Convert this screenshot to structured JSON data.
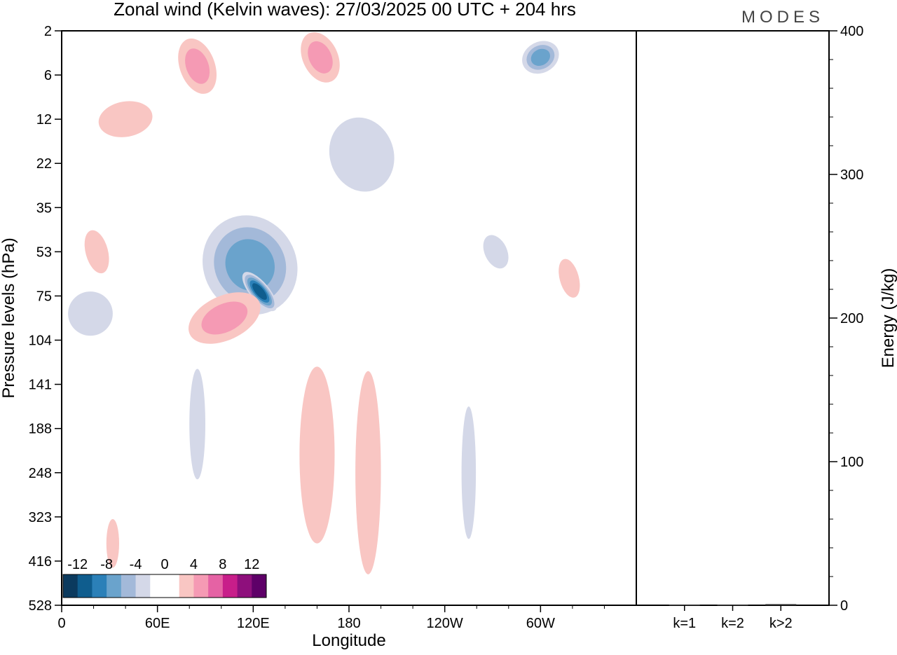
{
  "chart_data": {
    "type": "heatmap",
    "title": "Zonal wind (Kelvin waves):  27/03/2025  00 UTC  + 204 hrs",
    "logo": "MODES",
    "xlabel": "Longitude",
    "ylabel": "Pressure levels (hPa)",
    "ylabel_right": "Energy (J/kg)",
    "x_ticks": [
      "0",
      "60E",
      "120E",
      "180",
      "120W",
      "60W"
    ],
    "y_ticks": [
      "2",
      "6",
      "12",
      "22",
      "35",
      "53",
      "75",
      "104",
      "141",
      "188",
      "248",
      "323",
      "416",
      "528"
    ],
    "energy_axis": {
      "ticks": [
        "0",
        "100",
        "200",
        "300",
        "400"
      ],
      "range": [
        0,
        400
      ]
    },
    "energy_categories": [
      "k=1",
      "k=2",
      "k>2"
    ],
    "energy_values": [
      0.5,
      0.5,
      0.8
    ],
    "colorbar": {
      "labels": [
        "-12",
        "-8",
        "-4",
        "0",
        "4",
        "8",
        "12"
      ],
      "colors": [
        "#0b3a5e",
        "#0f5d8e",
        "#2b80b8",
        "#6aa3cc",
        "#a3b9d9",
        "#d4d8e8",
        "#ffffff",
        "#ffffff",
        "#f9c6c3",
        "#f59ab4",
        "#e562a4",
        "#c81e8a",
        "#8e0f7c",
        "#5e0068"
      ]
    },
    "features": [
      {
        "sign": "negative",
        "level": 3,
        "lon": 118,
        "lev": 5.3,
        "w": 58,
        "h": 2.3,
        "rot": -30
      },
      {
        "sign": "negative",
        "level": 5,
        "lon": 124,
        "lev": 5.9,
        "w": 12,
        "h": 1.1,
        "rot": -40
      },
      {
        "sign": "positive",
        "level": 2,
        "lon": 102,
        "lev": 6.5,
        "w": 48,
        "h": 1.0,
        "rot": -25
      },
      {
        "sign": "negative",
        "level": 1,
        "lon": 188,
        "lev": 2.8,
        "w": 40,
        "h": 1.7,
        "rot": -18
      },
      {
        "sign": "negative",
        "level": 3,
        "lon": 300,
        "lev": 0.6,
        "w": 24,
        "h": 0.7,
        "rot": -28
      },
      {
        "sign": "positive",
        "level": 1,
        "lon": 160,
        "lev": 9.6,
        "w": 22,
        "h": 4.0,
        "rot": 0
      },
      {
        "sign": "positive",
        "level": 1,
        "lon": 192,
        "lev": 10.0,
        "w": 16,
        "h": 4.6,
        "rot": 0
      },
      {
        "sign": "negative",
        "level": 1,
        "lon": 255,
        "lev": 10.0,
        "w": 9,
        "h": 3.0,
        "rot": 0
      },
      {
        "sign": "positive",
        "level": 2,
        "lon": 162,
        "lev": 0.6,
        "w": 22,
        "h": 1.2,
        "rot": -25
      },
      {
        "sign": "positive",
        "level": 2,
        "lon": 85,
        "lev": 0.8,
        "w": 22,
        "h": 1.3,
        "rot": -20
      },
      {
        "sign": "positive",
        "level": 1,
        "lon": 40,
        "lev": 2.0,
        "w": 34,
        "h": 0.8,
        "rot": -10
      },
      {
        "sign": "negative",
        "level": 1,
        "lon": 85,
        "lev": 8.9,
        "w": 10,
        "h": 2.5,
        "rot": 0
      },
      {
        "sign": "negative",
        "level": 1,
        "lon": 18,
        "lev": 6.4,
        "w": 28,
        "h": 1.0,
        "rot": 0
      },
      {
        "sign": "positive",
        "level": 1,
        "lon": 318,
        "lev": 5.6,
        "w": 12,
        "h": 0.9,
        "rot": -15
      },
      {
        "sign": "negative",
        "level": 1,
        "lon": 272,
        "lev": 5.0,
        "w": 14,
        "h": 0.8,
        "rot": -25
      },
      {
        "sign": "positive",
        "level": 1,
        "lon": 22,
        "lev": 5.0,
        "w": 14,
        "h": 1.0,
        "rot": -15
      },
      {
        "sign": "positive",
        "level": 1,
        "lon": 32,
        "lev": 11.6,
        "w": 8,
        "h": 1.1,
        "rot": 0
      }
    ]
  }
}
